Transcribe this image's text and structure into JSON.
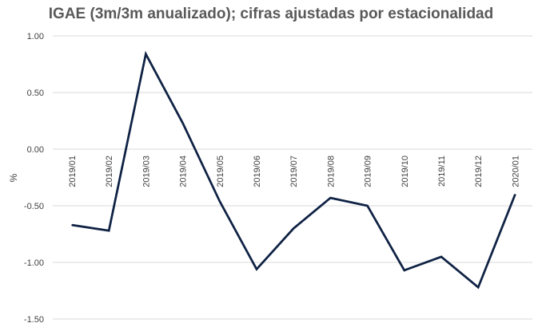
{
  "chart_data": {
    "type": "line",
    "title": "IGAE (3m/3m anualizado); cifras ajustadas por estacionalidad",
    "xlabel": "",
    "ylabel": "%",
    "categories": [
      "2019/01",
      "2019/02",
      "2019/03",
      "2019/04",
      "2019/05",
      "2019/06",
      "2019/07",
      "2019/08",
      "2019/09",
      "2019/10",
      "2019/11",
      "2019/12",
      "2020/01"
    ],
    "series": [
      {
        "values": [
          -0.67,
          -0.72,
          0.84,
          0.23,
          -0.46,
          -1.06,
          -0.7,
          -0.43,
          -0.5,
          -1.07,
          -0.95,
          -1.22,
          -0.4
        ]
      }
    ],
    "ylim": [
      -1.5,
      1.0
    ],
    "y_ticks": [
      1.0,
      0.5,
      0.0,
      -0.5,
      -1.0,
      -1.5
    ],
    "y_tick_labels": [
      "1.00",
      "0.50",
      "0.00",
      "-0.50",
      "-1.00",
      "-1.50"
    ],
    "grid": true,
    "legend": "none",
    "line_color": "#0f2244",
    "grid_color": "#d9d9d9"
  }
}
